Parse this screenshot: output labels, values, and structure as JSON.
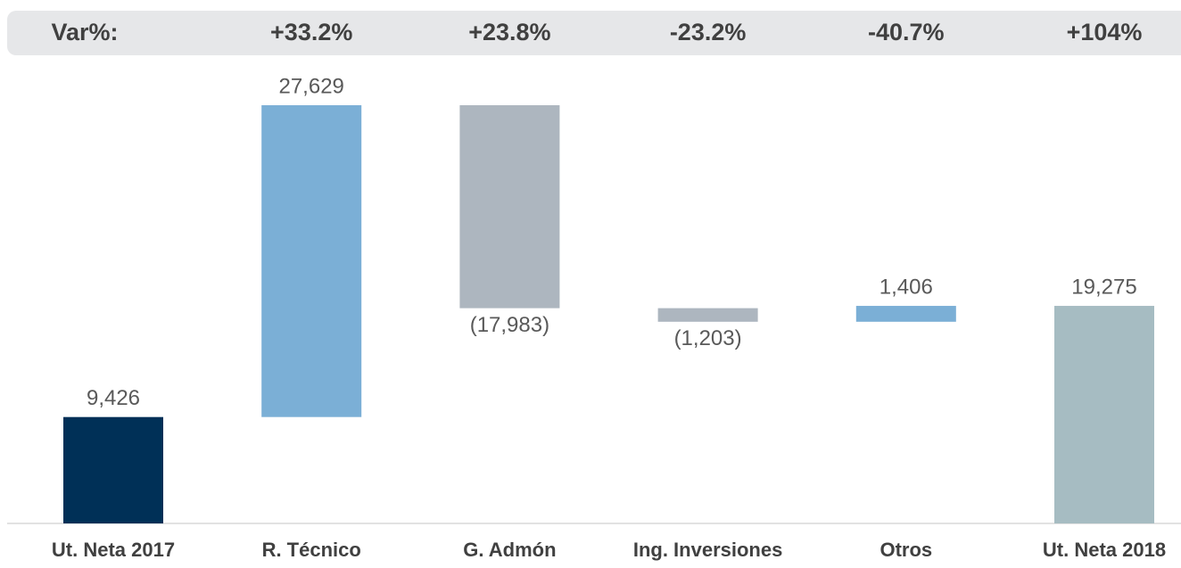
{
  "chart_data": {
    "type": "waterfall",
    "var_header": "Var%:",
    "var_labels": [
      "+33.2%",
      "+23.8%",
      "-23.2%",
      "-40.7%",
      "+104%"
    ],
    "categories": [
      "Ut. Neta 2017",
      "R. Técnico",
      "G. Admón",
      "Ing. Inversiones",
      "Otros",
      "Ut. Neta 2018"
    ],
    "values": [
      9426,
      27629,
      -17983,
      -1203,
      1406,
      19275
    ],
    "value_labels": [
      "9,426",
      "27,629",
      "(17,983)",
      "(1,203)",
      "1,406",
      "19,275"
    ],
    "measure": [
      "absolute",
      "relative",
      "relative",
      "relative",
      "relative",
      "total"
    ],
    "colors": [
      "#003057",
      "#7bafd6",
      "#adb6bf",
      "#adb6bf",
      "#7bafd6",
      "#a6bcc2"
    ]
  }
}
